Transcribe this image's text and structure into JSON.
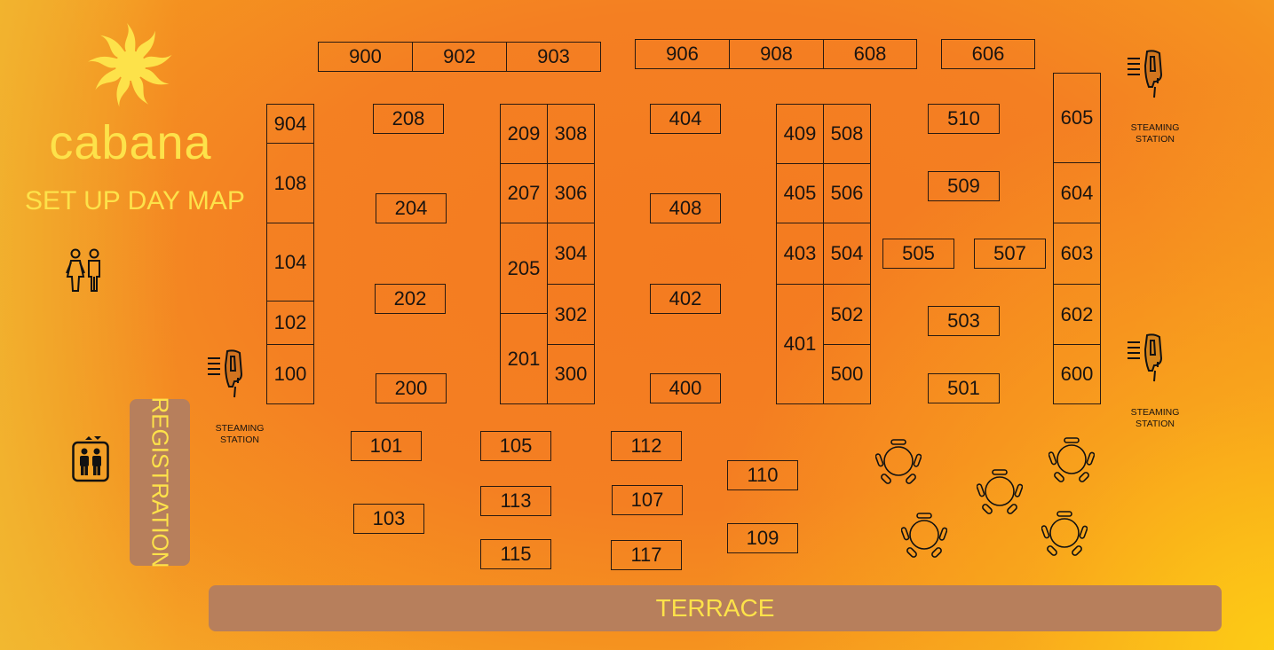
{
  "brand": {
    "name": "cabana",
    "subtitle": "SET UP DAY MAP"
  },
  "colors": {
    "logo_yellow": "#fde24a",
    "zone_brown": "#b77f5c",
    "line": "#1a1410",
    "bg_orange": "#f47b20"
  },
  "booths": {
    "b900": "900",
    "b902": "902",
    "b903": "903",
    "b906": "906",
    "b908": "908",
    "b608": "608",
    "b606": "606",
    "b904": "904",
    "b108": "108",
    "b104": "104",
    "b102": "102",
    "b100": "100",
    "b208": "208",
    "b204": "204",
    "b202": "202",
    "b200": "200",
    "b209": "209",
    "b207": "207",
    "b205": "205",
    "b201": "201",
    "b308": "308",
    "b306": "306",
    "b304": "304",
    "b302": "302",
    "b300": "300",
    "b404": "404",
    "b408": "408",
    "b402": "402",
    "b400": "400",
    "b409": "409",
    "b405": "405",
    "b403": "403",
    "b401": "401",
    "b508": "508",
    "b506": "506",
    "b504": "504",
    "b502": "502",
    "b500": "500",
    "b510": "510",
    "b509": "509",
    "b505": "505",
    "b507": "507",
    "b503": "503",
    "b501": "501",
    "b605": "605",
    "b604": "604",
    "b603": "603",
    "b602": "602",
    "b600": "600",
    "b101": "101",
    "b103": "103",
    "b105": "105",
    "b113": "113",
    "b115": "115",
    "b112": "112",
    "b107": "107",
    "b117": "117",
    "b110": "110",
    "b109": "109"
  },
  "zones": {
    "registration": "REGISTRATION",
    "terrace": "TERRACE"
  },
  "steaming_stations": [
    {
      "line1": "STEAMING",
      "line2": "STATION"
    },
    {
      "line1": "STEAMING",
      "line2": "STATION"
    },
    {
      "line1": "STEAMING",
      "line2": "STATION"
    }
  ],
  "icons": [
    "sun-logo-icon",
    "restroom-icon",
    "elevator-icon",
    "steamer-icon",
    "round-table-icon"
  ]
}
